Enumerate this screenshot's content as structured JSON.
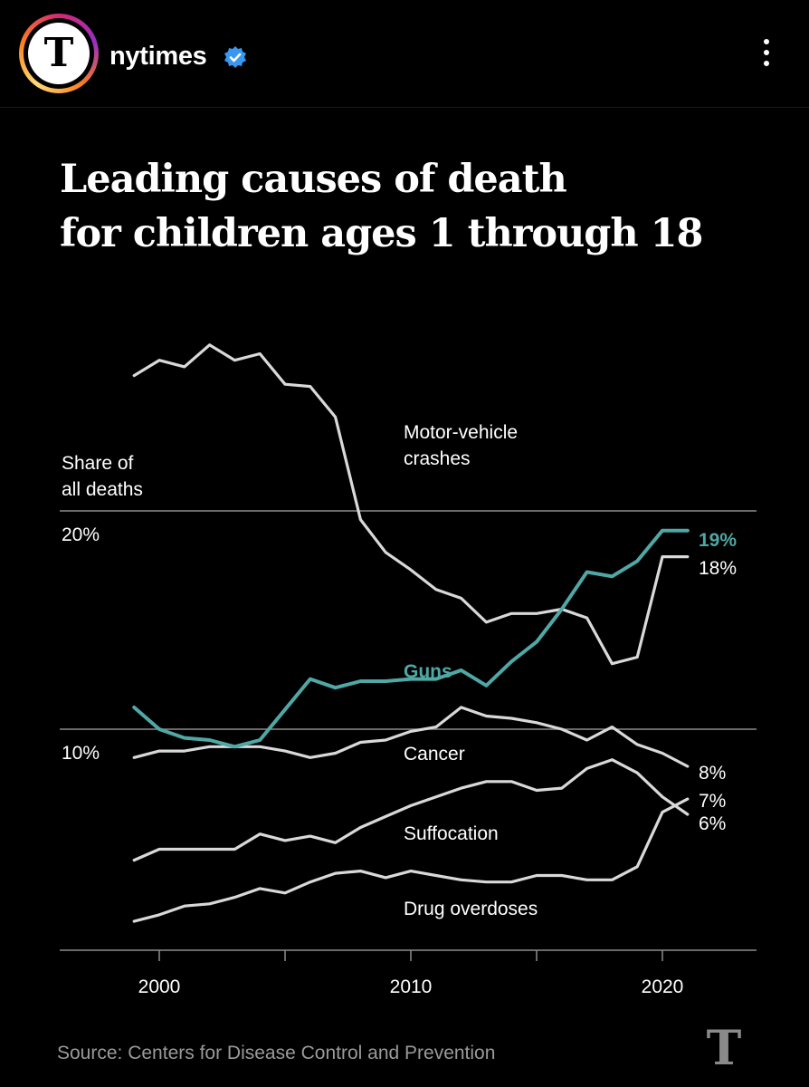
{
  "header": {
    "account_name": "nytimes",
    "avatar_letter": "T",
    "icons": [
      "nyt-avatar-icon",
      "verified-badge-icon",
      "more-options-icon"
    ]
  },
  "chart_data": {
    "type": "line",
    "title": "Leading causes of death\nfor children ages 1 through 18",
    "ylabel": "Share of\nall deaths",
    "xticks": [
      2000,
      2010,
      2020
    ],
    "yticks": [
      {
        "value": 10,
        "label": "10%"
      },
      {
        "value": 20,
        "label": "20%"
      }
    ],
    "xlim": [
      1998,
      2022
    ],
    "ylim": [
      0,
      30
    ],
    "grid": "horizontal at 10% and 20%",
    "series": [
      {
        "name": "Motor-vehicle crashes",
        "color": "#d9d9d9",
        "highlight": false,
        "end_label": "18%",
        "x": [
          1999,
          2000,
          2001,
          2002,
          2003,
          2004,
          2005,
          2006,
          2007,
          2008,
          2009,
          2010,
          2011,
          2012,
          2013,
          2014,
          2015,
          2016,
          2017,
          2018,
          2019,
          2020,
          2021
        ],
        "y": [
          26.2,
          26.9,
          26.6,
          27.6,
          26.9,
          27.2,
          25.8,
          25.7,
          24.3,
          19.6,
          18.1,
          17.3,
          16.4,
          16.0,
          14.9,
          15.3,
          15.3,
          15.5,
          15.1,
          13.0,
          13.3,
          17.9,
          17.9
        ]
      },
      {
        "name": "Guns",
        "color": "#4fa8a6",
        "highlight": true,
        "end_label": "19%",
        "x": [
          1999,
          2000,
          2001,
          2002,
          2003,
          2004,
          2005,
          2006,
          2007,
          2008,
          2009,
          2010,
          2011,
          2012,
          2013,
          2014,
          2015,
          2016,
          2017,
          2018,
          2019,
          2020,
          2021
        ],
        "y": [
          11.0,
          10.0,
          9.6,
          9.5,
          9.2,
          9.5,
          10.9,
          12.3,
          11.9,
          12.2,
          12.2,
          12.3,
          12.3,
          12.7,
          12.0,
          13.1,
          14.0,
          15.5,
          17.2,
          17.0,
          17.7,
          19.1,
          19.1
        ]
      },
      {
        "name": "Cancer",
        "color": "#d9d9d9",
        "highlight": false,
        "end_label": "8%",
        "x": [
          1999,
          2000,
          2001,
          2002,
          2003,
          2004,
          2005,
          2006,
          2007,
          2008,
          2009,
          2010,
          2011,
          2012,
          2013,
          2014,
          2015,
          2016,
          2017,
          2018,
          2019,
          2020,
          2021
        ],
        "y": [
          8.7,
          9.0,
          9.0,
          9.2,
          9.2,
          9.2,
          9.0,
          8.7,
          8.9,
          9.4,
          9.5,
          9.9,
          10.1,
          11.0,
          10.6,
          10.5,
          10.3,
          10.0,
          9.5,
          10.1,
          9.3,
          8.9,
          8.3
        ]
      },
      {
        "name": "Suffocation",
        "color": "#d9d9d9",
        "highlight": false,
        "end_label": "6%",
        "x": [
          1999,
          2000,
          2001,
          2002,
          2003,
          2004,
          2005,
          2006,
          2007,
          2008,
          2009,
          2010,
          2011,
          2012,
          2013,
          2014,
          2015,
          2016,
          2017,
          2018,
          2019,
          2020,
          2021
        ],
        "y": [
          4.0,
          4.5,
          4.5,
          4.5,
          4.5,
          5.2,
          4.9,
          5.1,
          4.8,
          5.5,
          6.0,
          6.5,
          6.9,
          7.3,
          7.6,
          7.6,
          7.2,
          7.3,
          8.2,
          8.6,
          8.0,
          6.9,
          6.1
        ]
      },
      {
        "name": "Drug overdoses",
        "color": "#d9d9d9",
        "highlight": false,
        "end_label": "7%",
        "x": [
          1999,
          2000,
          2001,
          2002,
          2003,
          2004,
          2005,
          2006,
          2007,
          2008,
          2009,
          2010,
          2011,
          2012,
          2013,
          2014,
          2015,
          2016,
          2017,
          2018,
          2019,
          2020,
          2021
        ],
        "y": [
          1.2,
          1.5,
          1.9,
          2.0,
          2.3,
          2.7,
          2.5,
          3.0,
          3.4,
          3.5,
          3.2,
          3.5,
          3.3,
          3.1,
          3.0,
          3.0,
          3.3,
          3.3,
          3.1,
          3.1,
          3.7,
          6.2,
          6.8
        ]
      }
    ]
  },
  "source": "Source: Centers for Disease Control and Prevention",
  "footer": {
    "logo_letter": "T"
  }
}
